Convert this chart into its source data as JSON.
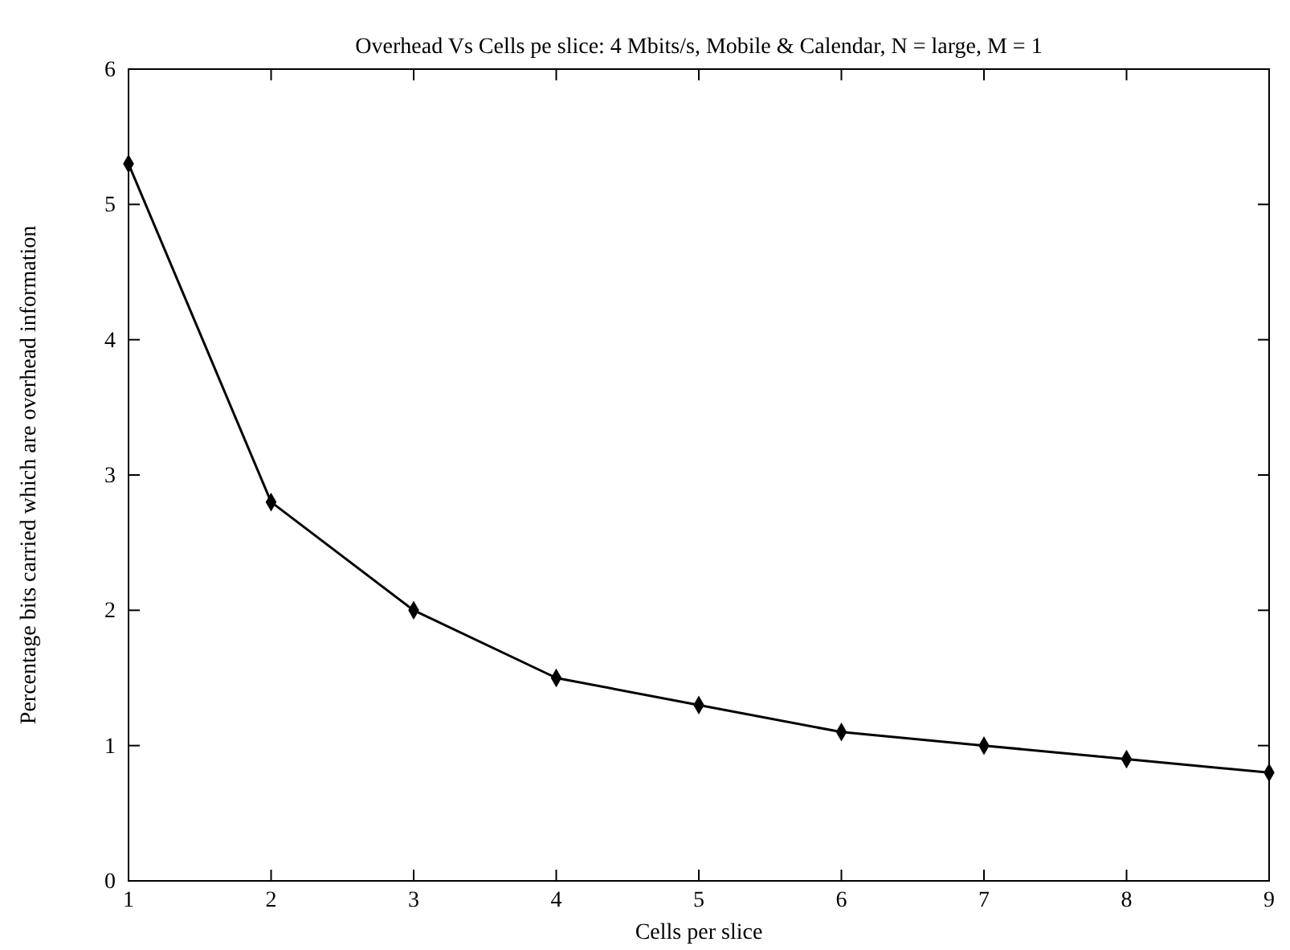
{
  "chart_data": {
    "type": "line",
    "title": "Overhead Vs Cells pe slice:  4 Mbits/s, Mobile & Calendar, N = large, M = 1",
    "xlabel": "Cells per slice",
    "ylabel": "Percentage bits carried which are overhead information",
    "x": [
      1,
      2,
      3,
      4,
      5,
      6,
      7,
      8,
      9
    ],
    "series": [
      {
        "color": "#000000",
        "values": [
          5.3,
          2.8,
          2.0,
          1.5,
          1.3,
          1.1,
          1.0,
          0.9,
          0.8
        ]
      }
    ],
    "xlim": [
      1,
      9
    ],
    "xticks": [
      1,
      2,
      3,
      4,
      5,
      6,
      7,
      8,
      9
    ],
    "ylim": [
      0,
      6
    ],
    "yticks": [
      0,
      1,
      2,
      3,
      4,
      5,
      6
    ],
    "grid": false,
    "marker": "diamond",
    "line_style": "solid"
  }
}
